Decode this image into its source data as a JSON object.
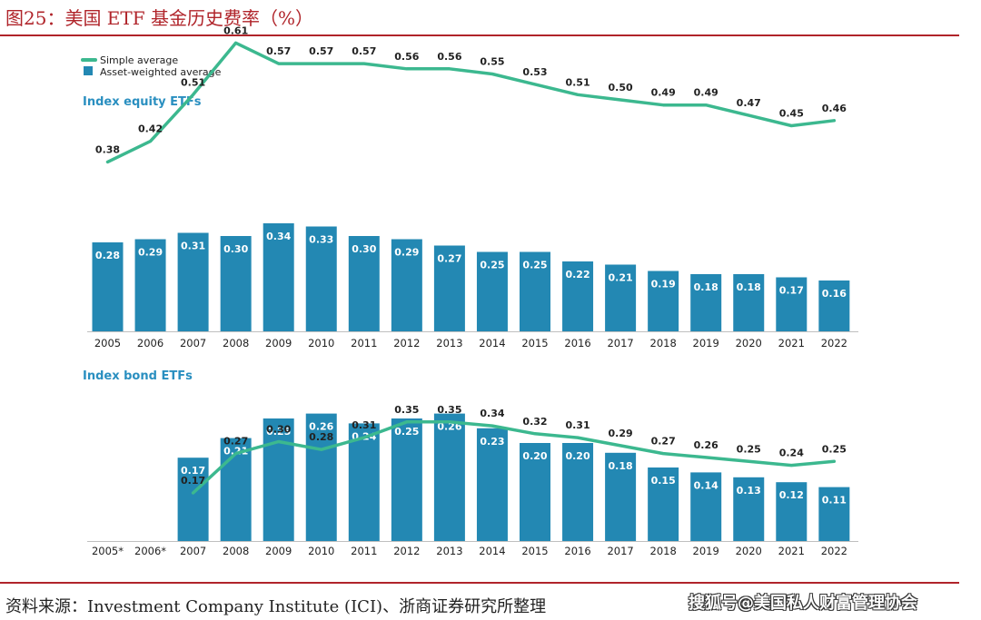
{
  "figure_title": "图25：美国 ETF 基金历史费率（%）",
  "source": "资料来源：Investment Company Institute (ICI)、浙商证券研究所整理",
  "watermark": "搜狐号@美国私人财富管理协会",
  "colors": {
    "accent": "#b0242a",
    "bar": "#2388b3",
    "line": "#3cb88f",
    "subtitle": "#2a8fc0"
  },
  "chart_data": [
    {
      "type": "bar+line",
      "subtitle": "Index equity ETFs",
      "categories": [
        "2005",
        "2006",
        "2007",
        "2008",
        "2009",
        "2010",
        "2011",
        "2012",
        "2013",
        "2014",
        "2015",
        "2016",
        "2017",
        "2018",
        "2019",
        "2020",
        "2021",
        "2022"
      ],
      "series": [
        {
          "name": "Simple average",
          "type": "line",
          "values": [
            0.38,
            0.42,
            0.51,
            0.61,
            0.57,
            0.57,
            0.57,
            0.56,
            0.56,
            0.55,
            0.53,
            0.51,
            0.5,
            0.49,
            0.49,
            0.47,
            0.45,
            0.46
          ]
        },
        {
          "name": "Asset-weighted average",
          "type": "bar",
          "values": [
            0.28,
            0.29,
            0.31,
            0.3,
            0.34,
            0.33,
            0.3,
            0.29,
            0.27,
            0.25,
            0.25,
            0.22,
            0.21,
            0.19,
            0.18,
            0.18,
            0.17,
            0.16
          ]
        }
      ]
    },
    {
      "type": "bar+line",
      "subtitle": "Index bond ETFs",
      "categories": [
        "2005*",
        "2006*",
        "2007",
        "2008",
        "2009",
        "2010",
        "2011",
        "2012",
        "2013",
        "2014",
        "2015",
        "2016",
        "2017",
        "2018",
        "2019",
        "2020",
        "2021",
        "2022"
      ],
      "series": [
        {
          "name": "Simple average",
          "type": "line",
          "values": [
            null,
            null,
            0.17,
            0.27,
            0.3,
            0.28,
            0.31,
            0.35,
            0.35,
            0.34,
            0.32,
            0.31,
            0.29,
            0.27,
            0.26,
            0.25,
            0.24,
            0.25
          ]
        },
        {
          "name": "Asset-weighted average",
          "type": "bar",
          "values": [
            null,
            null,
            0.17,
            0.21,
            0.25,
            0.26,
            0.24,
            0.25,
            0.26,
            0.23,
            0.2,
            0.2,
            0.18,
            0.15,
            0.14,
            0.13,
            0.12,
            0.11
          ]
        }
      ]
    }
  ]
}
